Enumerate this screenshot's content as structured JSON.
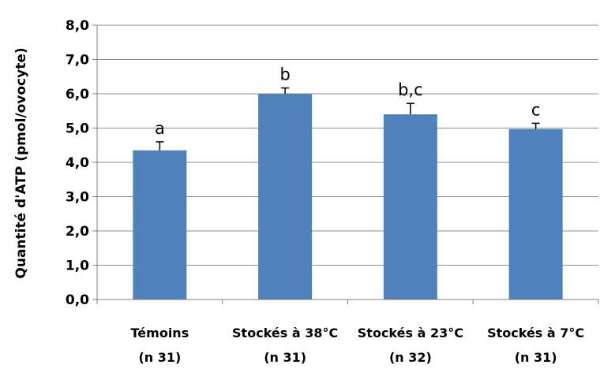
{
  "chart_data": {
    "type": "bar",
    "title": "",
    "xlabel": "",
    "ylabel": "Quantité d'ATP (pmol/ovocyte)",
    "ylim": [
      0,
      8
    ],
    "yticks": [
      "0,0",
      "1,0",
      "2,0",
      "3,0",
      "4,0",
      "5,0",
      "6,0",
      "7,0",
      "8,0"
    ],
    "grid": "horizontal",
    "categories": [
      {
        "line1": "Témoins",
        "line2": "(n  31)"
      },
      {
        "line1": "Stockés à 38°C",
        "line2": "(n  31)"
      },
      {
        "line1": "Stockés à 23°C",
        "line2": "(n  32)"
      },
      {
        "line1": "Stockés à 7°C",
        "line2": "(n  31)"
      }
    ],
    "values": [
      4.35,
      6.0,
      5.4,
      4.97
    ],
    "errors": [
      0.25,
      0.17,
      0.32,
      0.17
    ],
    "annotations": [
      "a",
      "b",
      "b,c",
      "c"
    ],
    "bar_color": "#4f81bd",
    "grid_color": "#8c8c8c",
    "axis_color": "#808080"
  }
}
